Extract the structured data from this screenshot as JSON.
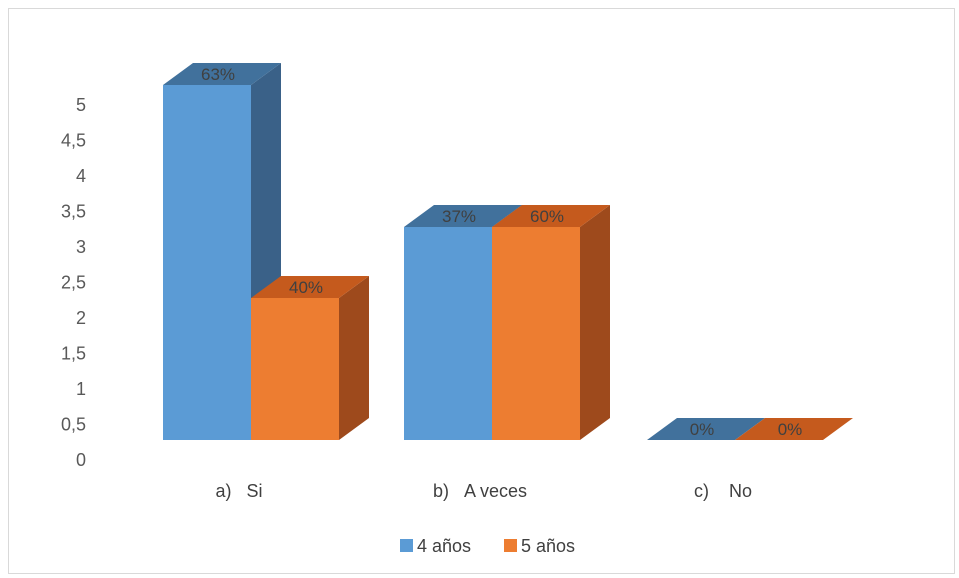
{
  "chart_data": {
    "type": "bar",
    "three_d": true,
    "categories": [
      "a)   Si",
      "b)   A veces",
      "c)    No"
    ],
    "series": [
      {
        "name": "4 años",
        "values": [
          5,
          3,
          0
        ],
        "labels": [
          "63%",
          "37%",
          "0%"
        ],
        "color": "#5b9bd5",
        "top_color": "#41719c",
        "side_color": "#3a6188"
      },
      {
        "name": "5 años",
        "values": [
          2,
          3,
          0
        ],
        "labels": [
          "40%",
          "60%",
          "0%"
        ],
        "color": "#ed7d31",
        "top_color": "#c55a1d",
        "side_color": "#9e4a1c"
      }
    ],
    "y_ticks": [
      "0",
      "0,5",
      "1",
      "1,5",
      "2",
      "2,5",
      "3",
      "3,5",
      "4",
      "4,5",
      "5"
    ],
    "ylim": [
      0,
      5
    ],
    "grid": false,
    "legend_position": "bottom",
    "title": "",
    "xlabel": "",
    "ylabel": ""
  }
}
